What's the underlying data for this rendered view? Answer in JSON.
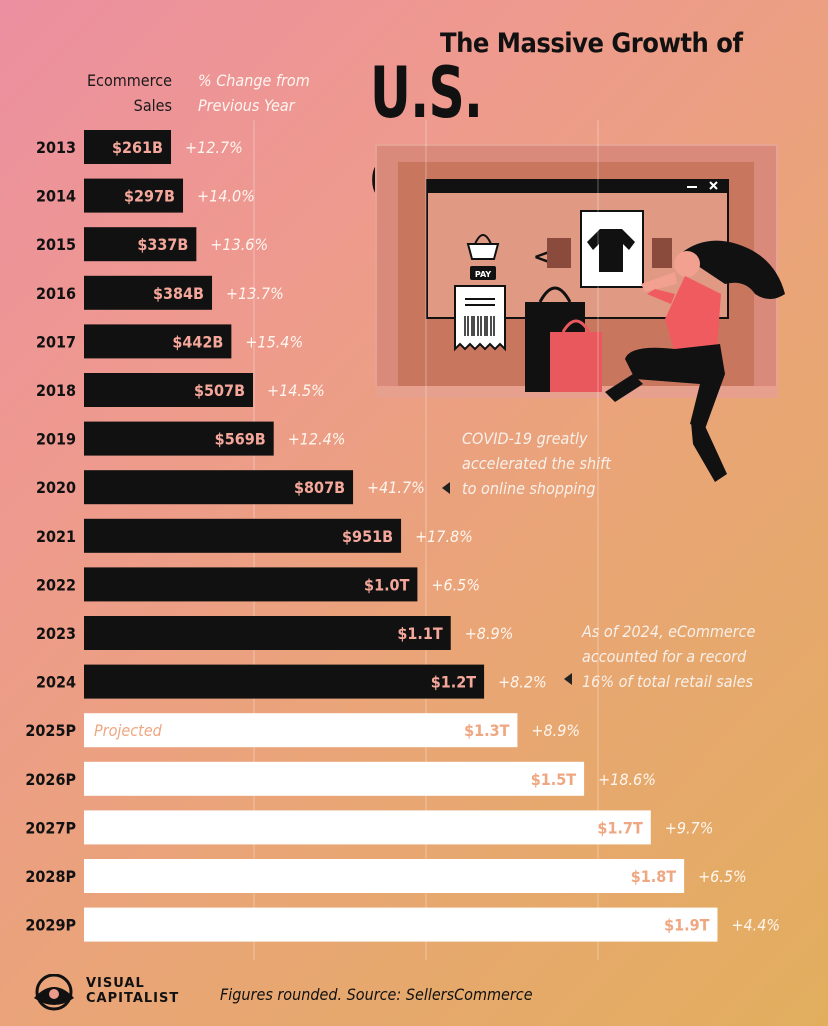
{
  "header": {
    "title_top": "The Massive Growth of",
    "title_main": "U.S. eCOMMERCE",
    "col_sales_line1": "Ecommerce",
    "col_sales_line2": "Sales",
    "col_change_line1": "% Change from",
    "col_change_line2": "Previous Year"
  },
  "annotations": {
    "covid": [
      "COVID-19 greatly",
      "accelerated the shift",
      "to online shopping"
    ],
    "share_2024": [
      "As of 2024, eCommerce",
      "accounted for a record",
      "16% of total retail sales"
    ]
  },
  "footer": {
    "brand_line1": "VISUAL",
    "brand_line2": "CAPITALIST",
    "source": "Figures rounded. Source: SellersCommerce"
  },
  "illustration": {
    "pay_label": "PAY",
    "icons": [
      "shopping-basket-icon",
      "receipt-icon",
      "barcode-icon",
      "shirt-icon",
      "shopping-bag-icon",
      "woman-shopper-icon",
      "window-close-icon"
    ]
  },
  "colors": {
    "actual_bar": "#111111",
    "projected_bar": "#ffffff",
    "actual_label": "#f4a79a",
    "projected_label": "#efa782",
    "change_text": "#fff6ef",
    "title": "#111111"
  },
  "chart_data": {
    "type": "bar",
    "orientation": "horizontal",
    "categories": [
      "2013",
      "2014",
      "2015",
      "2016",
      "2017",
      "2018",
      "2019",
      "2020",
      "2021",
      "2022",
      "2023",
      "2024",
      "2025P",
      "2026P",
      "2027P",
      "2028P",
      "2029P"
    ],
    "values_billions": [
      261,
      297,
      337,
      384,
      442,
      507,
      569,
      807,
      951,
      1000,
      1100,
      1200,
      1300,
      1500,
      1700,
      1800,
      1900
    ],
    "value_labels": [
      "$261B",
      "$297B",
      "$337B",
      "$384B",
      "$442B",
      "$507B",
      "$569B",
      "$807B",
      "$951B",
      "$1.0T",
      "$1.1T",
      "$1.2T",
      "$1.3T",
      "$1.5T",
      "$1.7T",
      "$1.8T",
      "$1.9T"
    ],
    "pct_change_labels": [
      "+12.7%",
      "+14.0%",
      "+13.6%",
      "+13.7%",
      "+15.4%",
      "+14.5%",
      "+12.4%",
      "+41.7%",
      "+17.8%",
      "+6.5%",
      "+8.9%",
      "+8.2%",
      "+8.9%",
      "+18.6%",
      "+9.7%",
      "+6.5%",
      "+4.4%"
    ],
    "projected": [
      false,
      false,
      false,
      false,
      false,
      false,
      false,
      false,
      false,
      false,
      false,
      false,
      true,
      true,
      true,
      true,
      true
    ],
    "projected_label": "Projected",
    "xlim": [
      0,
      1900
    ]
  }
}
